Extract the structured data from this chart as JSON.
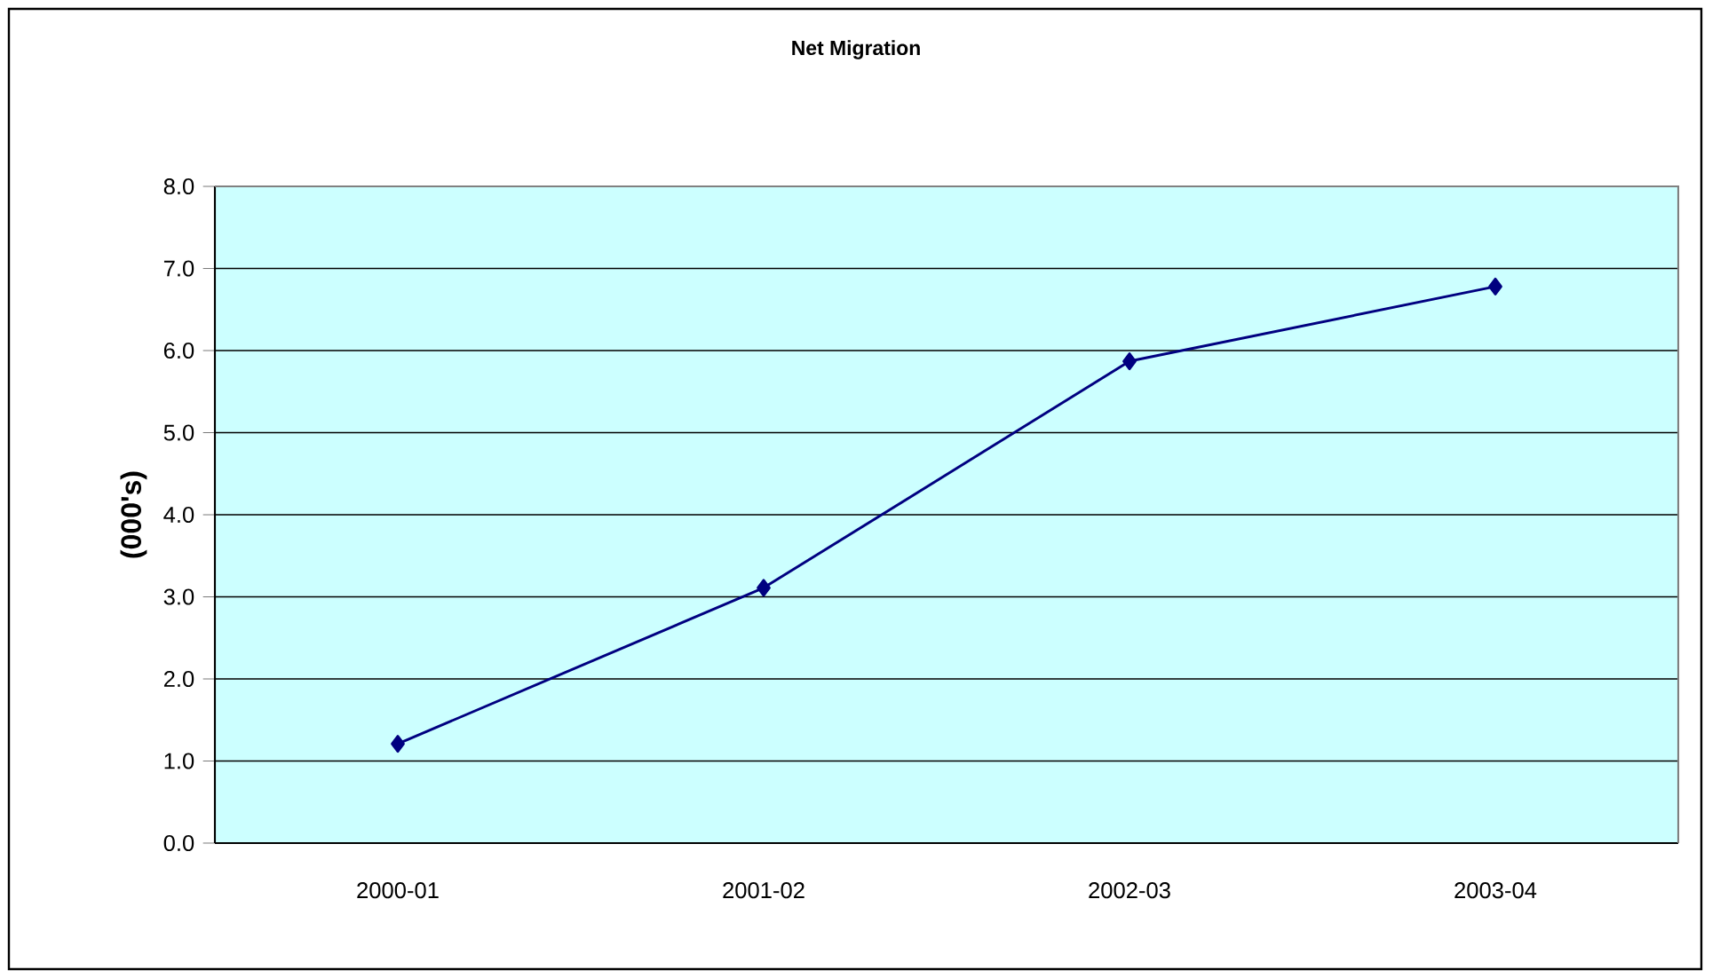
{
  "chart_data": {
    "type": "line",
    "title": "Net Migration",
    "ylabel": "(000's)",
    "categories": [
      "2000-01",
      "2001-02",
      "2002-03",
      "2003-04"
    ],
    "values": [
      1.21,
      3.11,
      5.87,
      6.78
    ],
    "color": "#000080",
    "marker": "diamond",
    "grid": "y",
    "ylim": [
      0,
      8
    ],
    "yticks": [
      {
        "value": 0,
        "label": "0.0"
      },
      {
        "value": 1,
        "label": "1.0"
      },
      {
        "value": 2,
        "label": "2.0"
      },
      {
        "value": 3,
        "label": "3.0"
      },
      {
        "value": 4,
        "label": "4.0"
      },
      {
        "value": 5,
        "label": "5.0"
      },
      {
        "value": 6,
        "label": "6.0"
      },
      {
        "value": 7,
        "label": "7.0"
      },
      {
        "value": 8,
        "label": "8.0"
      }
    ]
  }
}
